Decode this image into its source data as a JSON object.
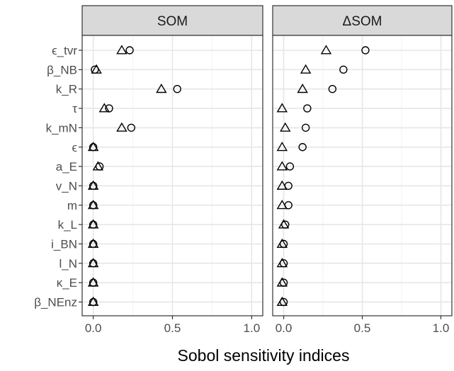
{
  "chart_data": {
    "type": "scatter",
    "xlabel": "Sobol sensitivity indices",
    "ylabel": "",
    "xlim": [
      -0.07,
      1.07
    ],
    "x_ticks": [
      0.0,
      0.5,
      1.0
    ],
    "x_tick_labels": [
      "0.0",
      "0.5",
      "1.0"
    ],
    "categories": [
      "ϵ_tvr",
      "β_NB",
      "k_R",
      "τ",
      "k_mN",
      "ϵ",
      "a_E",
      "v_N",
      "m",
      "k_L",
      "i_BN",
      "l_N",
      "κ_E",
      "β_NEnz"
    ],
    "grid": true,
    "legend": "none",
    "panels": [
      {
        "title": "SOM",
        "series": [
          {
            "marker": "circle",
            "values": [
              0.23,
              0.01,
              0.53,
              0.1,
              0.24,
              0.0,
              0.04,
              0.0,
              0.0,
              0.0,
              0.0,
              0.0,
              0.0,
              0.0
            ]
          },
          {
            "marker": "triangle",
            "values": [
              0.18,
              0.02,
              0.43,
              0.07,
              0.18,
              0.0,
              0.03,
              0.0,
              0.0,
              0.0,
              0.0,
              0.0,
              0.0,
              0.0
            ]
          }
        ]
      },
      {
        "title": "ΔSOM",
        "series": [
          {
            "marker": "circle",
            "values": [
              0.52,
              0.38,
              0.31,
              0.15,
              0.14,
              0.12,
              0.04,
              0.03,
              0.03,
              0.01,
              0.0,
              0.0,
              0.0,
              0.0
            ]
          },
          {
            "marker": "triangle",
            "values": [
              0.27,
              0.14,
              0.12,
              -0.01,
              0.01,
              -0.01,
              -0.01,
              -0.01,
              -0.01,
              0.0,
              -0.01,
              -0.01,
              -0.01,
              -0.01
            ]
          }
        ]
      }
    ]
  }
}
